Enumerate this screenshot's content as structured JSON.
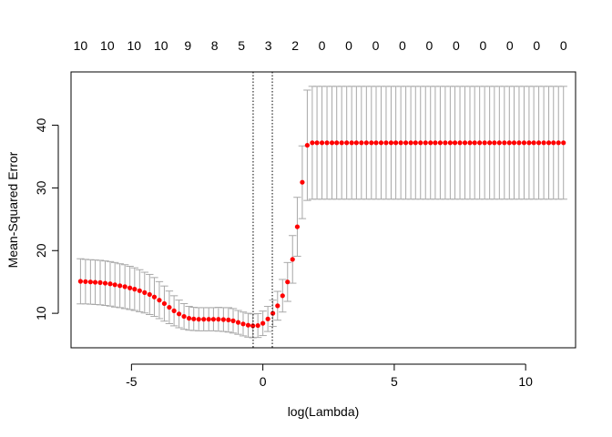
{
  "chart_data": {
    "type": "scatter",
    "title": "",
    "xlabel": "log(Lambda)",
    "ylabel": "Mean-Squared Error",
    "xlim": [
      -7.3,
      11.9
    ],
    "ylim": [
      4.5,
      48.5
    ],
    "x_ticks": [
      -5,
      0,
      5,
      10
    ],
    "y_ticks": [
      10,
      20,
      30,
      40
    ],
    "top_axis_labels": [
      "10",
      "10",
      "10",
      "10",
      "9",
      "8",
      "5",
      "3",
      "2",
      "0",
      "0",
      "0",
      "0",
      "0",
      "0",
      "0",
      "0",
      "0",
      "0"
    ],
    "reference_lines_x": [
      -0.37,
      0.36
    ],
    "grid": false,
    "error_bar_color": "#a8a8a8",
    "point_color": "#ff0000",
    "series": [
      {
        "x": [
          -6.94,
          -6.75,
          -6.56,
          -6.38,
          -6.19,
          -6.0,
          -5.81,
          -5.63,
          -5.44,
          -5.25,
          -5.06,
          -4.88,
          -4.69,
          -4.5,
          -4.31,
          -4.13,
          -3.94,
          -3.75,
          -3.56,
          -3.38,
          -3.19,
          -3.0,
          -2.81,
          -2.63,
          -2.44,
          -2.25,
          -2.06,
          -1.88,
          -1.69,
          -1.5,
          -1.31,
          -1.13,
          -0.94,
          -0.75,
          -0.56,
          -0.38,
          -0.19,
          0.0,
          0.19,
          0.38,
          0.56,
          0.75,
          0.94,
          1.13,
          1.31,
          1.5,
          1.69,
          1.88,
          2.06,
          2.25,
          2.44,
          2.63,
          2.81,
          3.0,
          3.19,
          3.38,
          3.56,
          3.75,
          3.94,
          4.13,
          4.31,
          4.5,
          4.69,
          4.88,
          5.06,
          5.25,
          5.44,
          5.63,
          5.81,
          6.0,
          6.19,
          6.38,
          6.56,
          6.75,
          6.94,
          7.13,
          7.31,
          7.5,
          7.69,
          7.88,
          8.06,
          8.25,
          8.44,
          8.63,
          8.81,
          9.0,
          9.19,
          9.38,
          9.56,
          9.75,
          9.94,
          10.13,
          10.31,
          10.5,
          10.69,
          10.88,
          11.06,
          11.25,
          11.44
        ],
        "y": [
          15.1,
          15.05,
          15.0,
          14.95,
          14.9,
          14.8,
          14.7,
          14.55,
          14.4,
          14.25,
          14.05,
          13.85,
          13.6,
          13.3,
          13.0,
          12.6,
          12.1,
          11.55,
          10.95,
          10.4,
          9.9,
          9.5,
          9.2,
          9.1,
          9.05,
          9.05,
          9.05,
          9.05,
          9.05,
          9.0,
          8.95,
          8.8,
          8.55,
          8.3,
          8.1,
          8.0,
          8.05,
          8.4,
          9.1,
          10.0,
          11.2,
          12.8,
          15.0,
          18.6,
          23.8,
          30.9,
          36.8,
          37.2,
          37.2,
          37.2,
          37.2,
          37.2,
          37.2,
          37.2,
          37.2,
          37.2,
          37.2,
          37.2,
          37.2,
          37.2,
          37.2,
          37.2,
          37.2,
          37.2,
          37.2,
          37.2,
          37.2,
          37.2,
          37.2,
          37.2,
          37.2,
          37.2,
          37.2,
          37.2,
          37.2,
          37.2,
          37.2,
          37.2,
          37.2,
          37.2,
          37.2,
          37.2,
          37.2,
          37.2,
          37.2,
          37.2,
          37.2,
          37.2,
          37.2,
          37.2,
          37.2,
          37.2,
          37.2,
          37.2,
          37.2,
          37.2,
          37.2,
          37.2,
          37.2
        ],
        "y_lower": [
          11.5,
          11.5,
          11.45,
          11.4,
          11.35,
          11.25,
          11.15,
          11.0,
          10.9,
          10.75,
          10.6,
          10.45,
          10.25,
          10.05,
          9.8,
          9.5,
          9.15,
          8.75,
          8.35,
          8.0,
          7.7,
          7.45,
          7.3,
          7.25,
          7.2,
          7.2,
          7.2,
          7.2,
          7.15,
          7.1,
          7.0,
          6.85,
          6.65,
          6.4,
          6.2,
          6.1,
          6.15,
          6.45,
          7.1,
          7.9,
          8.9,
          10.2,
          11.9,
          14.8,
          19.1,
          25.1,
          28.0,
          28.2,
          28.2,
          28.2,
          28.2,
          28.2,
          28.2,
          28.2,
          28.2,
          28.2,
          28.2,
          28.2,
          28.2,
          28.2,
          28.2,
          28.2,
          28.2,
          28.2,
          28.2,
          28.2,
          28.2,
          28.2,
          28.2,
          28.2,
          28.2,
          28.2,
          28.2,
          28.2,
          28.2,
          28.2,
          28.2,
          28.2,
          28.2,
          28.2,
          28.2,
          28.2,
          28.2,
          28.2,
          28.2,
          28.2,
          28.2,
          28.2,
          28.2,
          28.2,
          28.2,
          28.2,
          28.2,
          28.2,
          28.2,
          28.2,
          28.2,
          28.2,
          28.2
        ],
        "y_upper": [
          18.7,
          18.6,
          18.55,
          18.5,
          18.45,
          18.35,
          18.25,
          18.1,
          17.9,
          17.75,
          17.5,
          17.25,
          16.95,
          16.55,
          16.2,
          15.7,
          15.05,
          14.35,
          13.55,
          12.8,
          12.1,
          11.55,
          11.1,
          10.95,
          10.9,
          10.9,
          10.9,
          10.9,
          10.95,
          10.9,
          10.9,
          10.75,
          10.45,
          10.2,
          10.0,
          9.9,
          9.95,
          10.35,
          11.1,
          12.1,
          13.5,
          15.4,
          18.1,
          22.4,
          28.5,
          36.7,
          45.6,
          46.2,
          46.2,
          46.2,
          46.2,
          46.2,
          46.2,
          46.2,
          46.2,
          46.2,
          46.2,
          46.2,
          46.2,
          46.2,
          46.2,
          46.2,
          46.2,
          46.2,
          46.2,
          46.2,
          46.2,
          46.2,
          46.2,
          46.2,
          46.2,
          46.2,
          46.2,
          46.2,
          46.2,
          46.2,
          46.2,
          46.2,
          46.2,
          46.2,
          46.2,
          46.2,
          46.2,
          46.2,
          46.2,
          46.2,
          46.2,
          46.2,
          46.2,
          46.2,
          46.2,
          46.2,
          46.2,
          46.2,
          46.2,
          46.2,
          46.2,
          46.2,
          46.2
        ]
      }
    ]
  }
}
